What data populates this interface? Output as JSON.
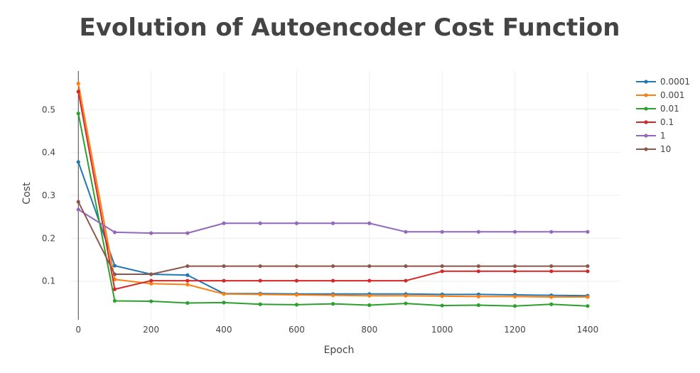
{
  "chart_data": {
    "type": "line",
    "title": "Evolution of Autoencoder Cost Function",
    "xlabel": "Epoch",
    "ylabel": "Cost",
    "xlim": [
      -20,
      1490
    ],
    "ylim": [
      0.01,
      0.59
    ],
    "xticks": [
      0,
      200,
      400,
      600,
      800,
      1000,
      1200,
      1400
    ],
    "yticks": [
      0.1,
      0.2,
      0.3,
      0.4,
      0.5
    ],
    "grid": true,
    "legend_position": "top-right",
    "x": [
      0,
      100,
      200,
      300,
      400,
      500,
      600,
      700,
      800,
      900,
      1000,
      1100,
      1200,
      1300,
      1400
    ],
    "series": [
      {
        "name": "0.0001",
        "color": "#1f77b4",
        "values": [
          0.378,
          0.136,
          0.116,
          0.114,
          0.071,
          0.071,
          0.07,
          0.07,
          0.07,
          0.07,
          0.069,
          0.069,
          0.068,
          0.067,
          0.066
        ]
      },
      {
        "name": "0.001",
        "color": "#ff7f0e",
        "values": [
          0.561,
          0.104,
          0.094,
          0.092,
          0.07,
          0.069,
          0.068,
          0.067,
          0.066,
          0.066,
          0.065,
          0.064,
          0.064,
          0.063,
          0.063
        ]
      },
      {
        "name": "0.01",
        "color": "#2ca02c",
        "values": [
          0.491,
          0.054,
          0.053,
          0.049,
          0.05,
          0.046,
          0.045,
          0.047,
          0.044,
          0.048,
          0.043,
          0.044,
          0.042,
          0.046,
          0.042
        ]
      },
      {
        "name": "0.1",
        "color": "#d62728",
        "values": [
          0.542,
          0.081,
          0.101,
          0.101,
          0.101,
          0.101,
          0.101,
          0.101,
          0.101,
          0.101,
          0.123,
          0.123,
          0.123,
          0.123,
          0.123
        ]
      },
      {
        "name": "1",
        "color": "#9467bd",
        "values": [
          0.267,
          0.214,
          0.212,
          0.212,
          0.235,
          0.235,
          0.235,
          0.235,
          0.235,
          0.215,
          0.215,
          0.215,
          0.215,
          0.215,
          0.215
        ]
      },
      {
        "name": "10",
        "color": "#8c564b",
        "values": [
          0.285,
          0.116,
          0.116,
          0.135,
          0.135,
          0.135,
          0.135,
          0.135,
          0.135,
          0.135,
          0.135,
          0.135,
          0.135,
          0.135,
          0.135
        ]
      }
    ]
  }
}
